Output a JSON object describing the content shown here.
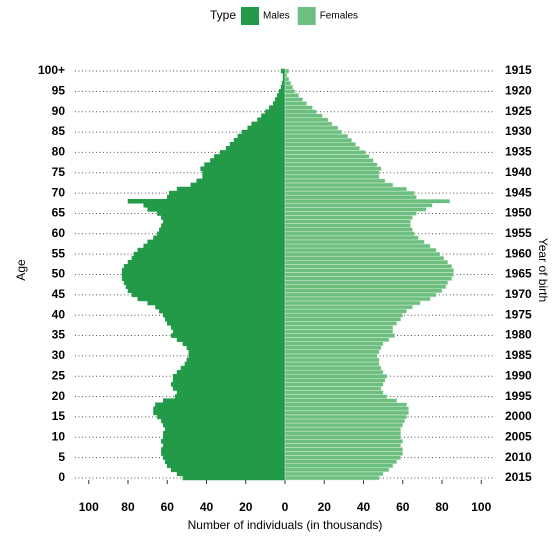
{
  "chart_data": {
    "type": "pyramid",
    "legend_title": "Type",
    "legend_position": "top",
    "y_label": "Age",
    "y2_label": "Year of birth",
    "x_label": "Number of individuals (in thousands)",
    "y": [
      0,
      1,
      2,
      3,
      4,
      5,
      6,
      7,
      8,
      9,
      10,
      11,
      12,
      13,
      14,
      15,
      16,
      17,
      18,
      19,
      20,
      21,
      22,
      23,
      24,
      25,
      26,
      27,
      28,
      29,
      30,
      31,
      32,
      33,
      34,
      35,
      36,
      37,
      38,
      39,
      40,
      41,
      42,
      43,
      44,
      45,
      46,
      47,
      48,
      49,
      50,
      51,
      52,
      53,
      54,
      55,
      56,
      57,
      58,
      59,
      60,
      61,
      62,
      63,
      64,
      65,
      66,
      67,
      68,
      69,
      70,
      71,
      72,
      73,
      74,
      75,
      76,
      77,
      78,
      79,
      80,
      81,
      82,
      83,
      84,
      85,
      86,
      87,
      88,
      89,
      90,
      91,
      92,
      93,
      94,
      95,
      96,
      97,
      98,
      99,
      100
    ],
    "series": [
      {
        "name": "Males",
        "color": "#229a48",
        "values": [
          -52,
          -55,
          -58,
          -60,
          -61,
          -62,
          -63,
          -63,
          -62,
          -63,
          -62,
          -62,
          -61,
          -62,
          -63,
          -65,
          -67,
          -67,
          -66,
          -62,
          -56,
          -55,
          -57,
          -58,
          -57,
          -57,
          -55,
          -53,
          -51,
          -50,
          -49,
          -49,
          -50,
          -52,
          -55,
          -58,
          -57,
          -58,
          -60,
          -61,
          -62,
          -64,
          -66,
          -70,
          -75,
          -78,
          -80,
          -81,
          -82,
          -83,
          -83,
          -83,
          -82,
          -80,
          -78,
          -77,
          -75,
          -72,
          -70,
          -67,
          -65,
          -64,
          -63,
          -62,
          -63,
          -65,
          -70,
          -72,
          -80,
          -60,
          -59,
          -55,
          -48,
          -45,
          -42,
          -42,
          -43,
          -41,
          -38,
          -36,
          -33,
          -30,
          -28,
          -26,
          -24,
          -22,
          -19,
          -17,
          -14,
          -12,
          -10,
          -8,
          -6,
          -5,
          -4,
          -3,
          -2,
          -1.5,
          -1,
          -1,
          -2
        ]
      },
      {
        "name": "Females",
        "color": "#6dbf7f",
        "values": [
          48,
          50,
          53,
          55,
          57,
          59,
          60,
          60,
          59,
          60,
          59,
          59,
          59,
          60,
          61,
          62,
          63,
          63,
          62,
          57,
          52,
          50,
          49,
          50,
          51,
          52,
          50,
          49,
          48,
          48,
          47,
          48,
          49,
          50,
          53,
          56,
          55,
          55,
          57,
          59,
          60,
          62,
          65,
          69,
          74,
          77,
          80,
          82,
          83,
          85,
          86,
          86,
          85,
          83,
          81,
          79,
          77,
          74,
          71,
          68,
          66,
          65,
          64,
          64,
          65,
          67,
          72,
          75,
          84,
          67,
          66,
          62,
          55,
          51,
          48,
          48,
          49,
          47,
          45,
          43,
          41,
          38,
          36,
          34,
          32,
          29,
          27,
          24,
          22,
          19,
          16,
          14,
          11,
          9,
          7,
          5,
          4,
          3,
          2,
          1,
          2
        ]
      }
    ],
    "xlim": [
      -107,
      107
    ],
    "xticks": [
      {
        "value": -100,
        "label": "100"
      },
      {
        "value": -80,
        "label": "80"
      },
      {
        "value": -60,
        "label": "60"
      },
      {
        "value": -40,
        "label": "40"
      },
      {
        "value": -20,
        "label": "20"
      },
      0,
      20,
      40,
      60,
      80,
      100
    ],
    "ylim": [
      -0.5,
      100.5
    ],
    "yticks": [
      0,
      5,
      10,
      15,
      20,
      25,
      30,
      35,
      40,
      45,
      50,
      55,
      60,
      65,
      70,
      75,
      80,
      85,
      90,
      95,
      {
        "value": 100,
        "label": "100+"
      }
    ],
    "y2lim": [
      2015.5,
      1914.5
    ],
    "y2ticks": [
      2015,
      2010,
      2005,
      2000,
      1995,
      1990,
      1985,
      1980,
      1975,
      1970,
      1965,
      1960,
      1955,
      1950,
      1945,
      1940,
      1935,
      1930,
      1925,
      1920,
      1915
    ],
    "grid": true
  }
}
